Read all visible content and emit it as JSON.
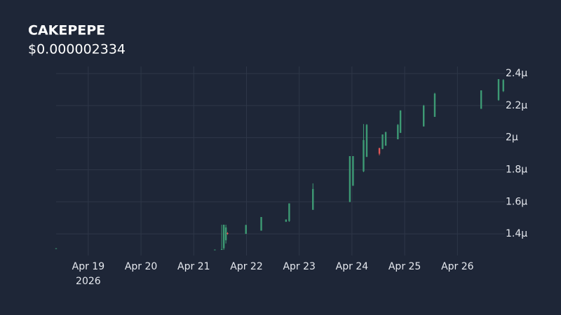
{
  "chart_data": {
    "type": "candlestick",
    "title": "CAKEPEPE",
    "subtitle": "$0.000002334",
    "x_year_label": "2026",
    "up_color": "#3d9a74",
    "down_color": "#e05656",
    "grid": true,
    "xlim": [
      18.39,
      26.9
    ],
    "xticks": [
      {
        "value": 19,
        "label": "Apr 19"
      },
      {
        "value": 20,
        "label": "Apr 20"
      },
      {
        "value": 21,
        "label": "Apr 21"
      },
      {
        "value": 22,
        "label": "Apr 22"
      },
      {
        "value": 23,
        "label": "Apr 23"
      },
      {
        "value": 24,
        "label": "Apr 24"
      },
      {
        "value": 25,
        "label": "Apr 25"
      },
      {
        "value": 26,
        "label": "Apr 26"
      }
    ],
    "ylim": [
      1.265,
      2.444
    ],
    "yticks": [
      {
        "value": 1.4,
        "label": "1.4µ"
      },
      {
        "value": 1.6,
        "label": "1.6µ"
      },
      {
        "value": 1.8,
        "label": "1.8µ"
      },
      {
        "value": 2,
        "label": "2µ"
      },
      {
        "value": 2.2,
        "label": "2.2µ"
      },
      {
        "value": 2.4,
        "label": "2.4µ"
      }
    ],
    "x": [
      18.39,
      21.4,
      21.53,
      21.57,
      21.61,
      21.64,
      21.99,
      22.28,
      22.75,
      22.81,
      23.26,
      23.96,
      24.02,
      24.22,
      24.28,
      24.52,
      24.58,
      24.64,
      24.87,
      24.92,
      25.36,
      25.57,
      26.45,
      26.78,
      26.87
    ],
    "open": [
      1.308,
      1.298,
      1.3,
      1.31,
      1.36,
      1.405,
      1.4,
      1.42,
      1.476,
      1.48,
      1.55,
      1.6,
      1.7,
      1.79,
      1.88,
      1.935,
      1.93,
      1.95,
      1.99,
      2.03,
      2.07,
      2.13,
      2.18,
      2.235,
      2.29
    ],
    "high": [
      1.31,
      1.302,
      1.457,
      1.457,
      1.457,
      1.41,
      1.457,
      1.505,
      1.49,
      1.59,
      1.715,
      1.885,
      1.885,
      2.085,
      2.085,
      1.937,
      2.02,
      2.037,
      2.085,
      2.17,
      2.205,
      2.28,
      2.295,
      2.365,
      2.365
    ],
    "low": [
      1.308,
      1.298,
      1.3,
      1.3,
      1.34,
      1.395,
      1.4,
      1.42,
      1.474,
      1.475,
      1.55,
      1.597,
      1.7,
      1.785,
      1.88,
      1.89,
      1.928,
      1.95,
      1.99,
      2.03,
      2.07,
      2.13,
      2.18,
      2.23,
      2.285
    ],
    "close": [
      1.31,
      1.302,
      1.305,
      1.457,
      1.44,
      1.4,
      1.455,
      1.505,
      1.49,
      1.59,
      1.68,
      1.885,
      1.885,
      1.985,
      2.08,
      1.9,
      2.02,
      2.035,
      2.08,
      2.17,
      2.2,
      2.275,
      2.295,
      2.365,
      2.36
    ]
  }
}
